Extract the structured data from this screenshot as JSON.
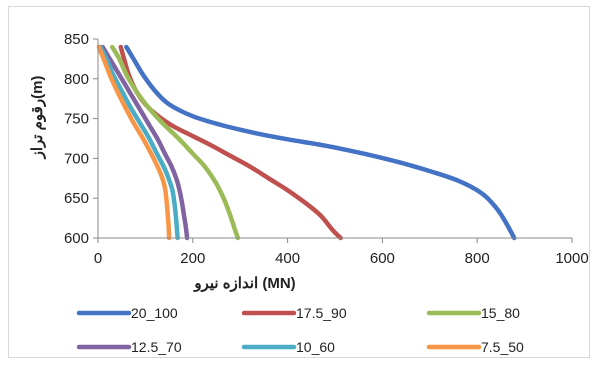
{
  "chart_data": {
    "type": "line",
    "title": "",
    "xlabel": "اندازه نیرو (MN)",
    "ylabel": "رقوم تراز(m)",
    "xlim": [
      0,
      1000
    ],
    "ylim": [
      600,
      850
    ],
    "x_ticks": [
      "0",
      "200",
      "400",
      "600",
      "800",
      "1000"
    ],
    "y_ticks": [
      "600",
      "650",
      "700",
      "750",
      "800",
      "850"
    ],
    "grid": false,
    "legend_position": "bottom",
    "series": [
      {
        "name": "20_100",
        "color": "#4472C4",
        "points": [
          [
            60,
            840
          ],
          [
            75,
            825
          ],
          [
            95,
            805
          ],
          [
            120,
            785
          ],
          [
            150,
            768
          ],
          [
            200,
            753
          ],
          [
            260,
            742
          ],
          [
            330,
            732
          ],
          [
            400,
            724
          ],
          [
            480,
            716
          ],
          [
            560,
            706
          ],
          [
            630,
            696
          ],
          [
            700,
            684
          ],
          [
            760,
            672
          ],
          [
            810,
            656
          ],
          [
            840,
            638
          ],
          [
            860,
            620
          ],
          [
            878,
            600
          ]
        ]
      },
      {
        "name": "17.5_90",
        "color": "#C0504D",
        "points": [
          [
            48,
            840
          ],
          [
            55,
            825
          ],
          [
            65,
            805
          ],
          [
            80,
            785
          ],
          [
            100,
            768
          ],
          [
            125,
            754
          ],
          [
            160,
            740
          ],
          [
            200,
            728
          ],
          [
            240,
            716
          ],
          [
            280,
            703
          ],
          [
            320,
            690
          ],
          [
            360,
            675
          ],
          [
            400,
            660
          ],
          [
            440,
            643
          ],
          [
            470,
            628
          ],
          [
            495,
            610
          ],
          [
            512,
            600
          ]
        ]
      },
      {
        "name": "15_80",
        "color": "#9BBB59",
        "points": [
          [
            30,
            840
          ],
          [
            45,
            825
          ],
          [
            60,
            805
          ],
          [
            80,
            785
          ],
          [
            105,
            765
          ],
          [
            135,
            745
          ],
          [
            170,
            725
          ],
          [
            200,
            706
          ],
          [
            225,
            690
          ],
          [
            248,
            670
          ],
          [
            265,
            650
          ],
          [
            278,
            630
          ],
          [
            288,
            612
          ],
          [
            295,
            600
          ]
        ]
      },
      {
        "name": "12.5_70",
        "color": "#8064A2",
        "points": [
          [
            10,
            840
          ],
          [
            25,
            825
          ],
          [
            45,
            805
          ],
          [
            65,
            785
          ],
          [
            85,
            765
          ],
          [
            105,
            745
          ],
          [
            125,
            725
          ],
          [
            142,
            705
          ],
          [
            155,
            690
          ],
          [
            165,
            675
          ],
          [
            172,
            660
          ],
          [
            177,
            645
          ],
          [
            181,
            630
          ],
          [
            185,
            615
          ],
          [
            188,
            600
          ]
        ]
      },
      {
        "name": "10_60",
        "color": "#4BACC6",
        "points": [
          [
            5,
            840
          ],
          [
            18,
            825
          ],
          [
            32,
            805
          ],
          [
            50,
            785
          ],
          [
            68,
            765
          ],
          [
            88,
            745
          ],
          [
            108,
            725
          ],
          [
            125,
            705
          ],
          [
            140,
            688
          ],
          [
            150,
            673
          ],
          [
            157,
            660
          ],
          [
            161,
            645
          ],
          [
            164,
            630
          ],
          [
            166,
            615
          ],
          [
            168,
            600
          ]
        ]
      },
      {
        "name": "7.5_50",
        "color": "#F79646",
        "points": [
          [
            2,
            840
          ],
          [
            12,
            825
          ],
          [
            25,
            805
          ],
          [
            40,
            785
          ],
          [
            57,
            765
          ],
          [
            75,
            745
          ],
          [
            95,
            725
          ],
          [
            113,
            705
          ],
          [
            127,
            688
          ],
          [
            137,
            673
          ],
          [
            142,
            660
          ],
          [
            145,
            645
          ],
          [
            147,
            630
          ],
          [
            149,
            615
          ],
          [
            150,
            600
          ]
        ]
      }
    ]
  }
}
